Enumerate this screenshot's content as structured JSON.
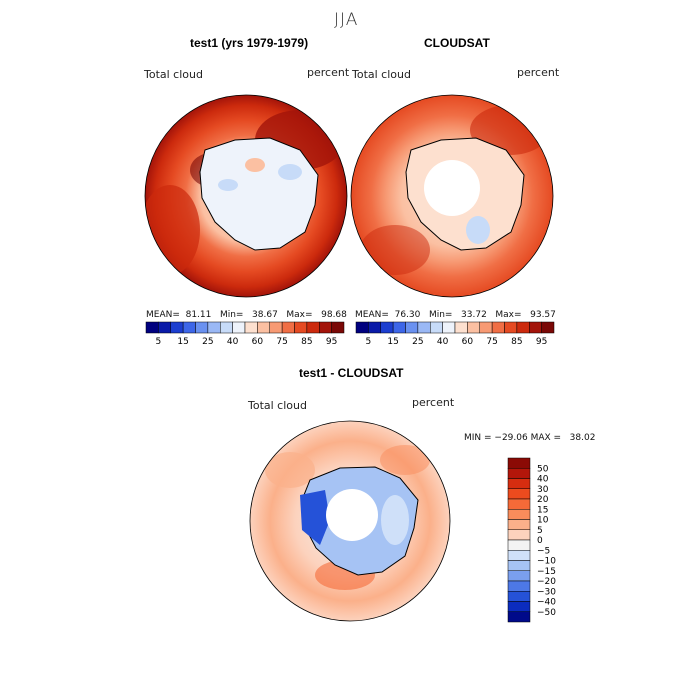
{
  "figure": {
    "title": "JJA"
  },
  "panels": [
    {
      "title": "test1 (yrs 1979-1979)",
      "left_label": "Total cloud",
      "right_label": "percent",
      "stats": "MEAN=  81.11   Min=   38.67   Max=   98.68"
    },
    {
      "title": "CLOUDSAT",
      "left_label": "Total cloud",
      "right_label": "percent",
      "stats": "MEAN=  76.30   Min=   33.72   Max=   93.57"
    },
    {
      "title": "test1 - CLOUDSAT",
      "left_label": "Total cloud",
      "right_label": "percent",
      "stats": "MIN = −29.06 MAX =   38.02"
    }
  ],
  "colorbar_top": {
    "labels": [
      "5",
      "15",
      "25",
      "40",
      "60",
      "75",
      "85",
      "95"
    ],
    "colors": [
      "#00007f",
      "#0a1aa8",
      "#1c3ed0",
      "#3d66e8",
      "#6a91f0",
      "#9ab8f5",
      "#c7dbf8",
      "#eef3fb",
      "#fde0cf",
      "#fbc0a2",
      "#f79a74",
      "#f06e45",
      "#e54a22",
      "#cc2a0d",
      "#a3140a",
      "#7a0806"
    ]
  },
  "colorbar_diff": {
    "labels": [
      "50",
      "40",
      "30",
      "20",
      "15",
      "10",
      "5",
      "0",
      "−5",
      "−10",
      "−15",
      "−20",
      "−30",
      "−40",
      "−50"
    ],
    "colors": [
      "#8b0a05",
      "#b3160a",
      "#d62d10",
      "#ec4b1e",
      "#f56a38",
      "#f98c5b",
      "#fbb08a",
      "#fcd2bd",
      "#f3f3f3",
      "#cfe0f9",
      "#a6c3f4",
      "#7a9fee",
      "#4d78e6",
      "#2552d8",
      "#0b2cbf",
      "#000a8a"
    ]
  },
  "chart_data": {
    "type": "heatmap",
    "title": "JJA",
    "maps": [
      {
        "name": "test1 (yrs 1979-1979)",
        "variable": "Total cloud",
        "units": "percent",
        "mean": 81.11,
        "min": 38.67,
        "max": 98.68
      },
      {
        "name": "CLOUDSAT",
        "variable": "Total cloud",
        "units": "percent",
        "mean": 76.3,
        "min": 33.72,
        "max": 93.57
      },
      {
        "name": "test1 - CLOUDSAT",
        "variable": "Total cloud",
        "units": "percent",
        "min": -29.06,
        "max": 38.02
      }
    ],
    "levels": [
      5,
      15,
      25,
      40,
      60,
      75,
      85,
      95
    ],
    "diff_levels": [
      50,
      40,
      30,
      20,
      15,
      10,
      5,
      0,
      -5,
      -10,
      -15,
      -20,
      -30,
      -40,
      -50
    ]
  },
  "colors": {
    "title": "#333333"
  }
}
